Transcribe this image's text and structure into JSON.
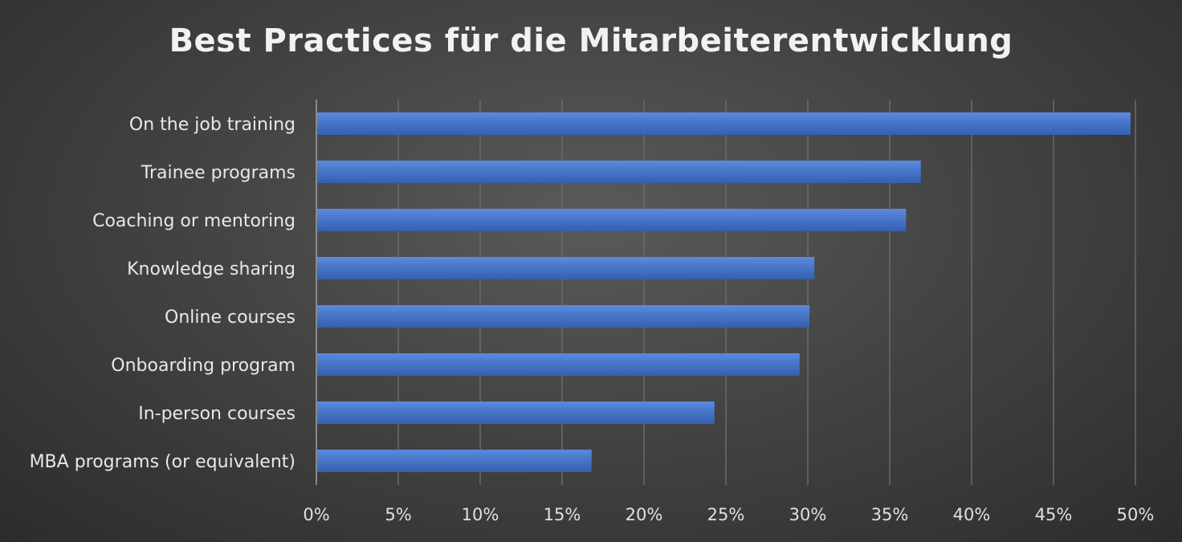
{
  "chart_data": {
    "type": "bar",
    "orientation": "horizontal",
    "title": "Best Practices für die Mitarbeiterentwicklung",
    "categories": [
      "On the job training",
      "Trainee programs",
      "Coaching or mentoring",
      "Knowledge sharing",
      "Online courses",
      "Onboarding program",
      "In-person courses",
      "MBA programs (or equivalent)"
    ],
    "values": [
      0.497,
      0.369,
      0.36,
      0.304,
      0.301,
      0.295,
      0.243,
      0.168
    ],
    "xlim": [
      0,
      0.5
    ],
    "x_ticks": [
      0,
      0.05,
      0.1,
      0.15,
      0.2,
      0.25,
      0.3,
      0.35,
      0.4,
      0.45,
      0.5
    ],
    "x_tick_labels": [
      "0%",
      "5%",
      "10%",
      "15%",
      "20%",
      "25%",
      "30%",
      "35%",
      "40%",
      "45%",
      "50%"
    ],
    "grid": "vertical",
    "legend": "none",
    "colors": {
      "bar": "#4472c4",
      "grid": "#6a6a6a",
      "axis": "#8a8a8a"
    }
  }
}
